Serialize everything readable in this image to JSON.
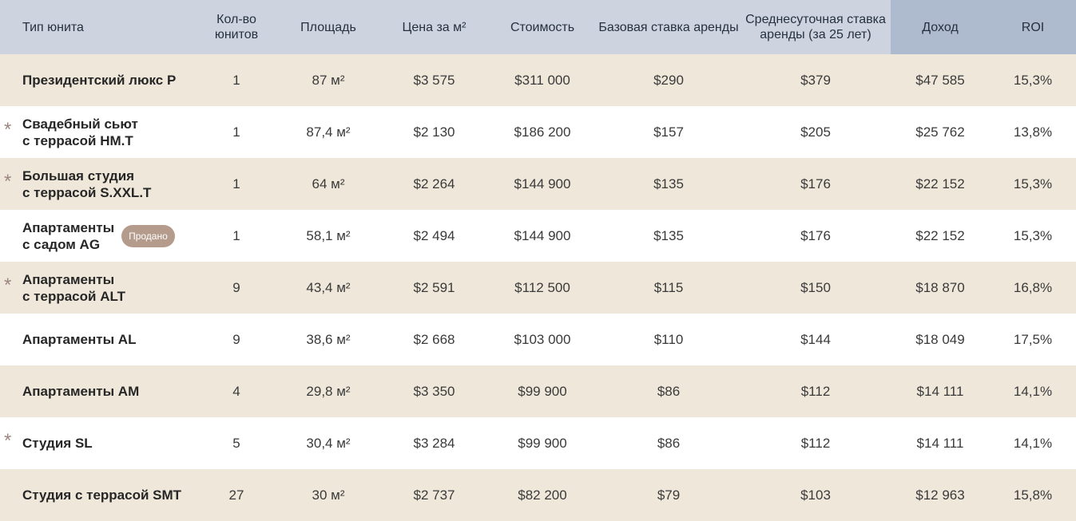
{
  "table": {
    "headers": {
      "type": "Тип юнита",
      "qty": "Кол-во юнитов",
      "area": "Площадь",
      "price": "Цена за м²",
      "cost": "Стоимость",
      "base": "Базовая ставка аренды",
      "avg": "Среднесуточная ставка аренды (за 25 лет)",
      "income": "Доход",
      "roi": "ROI"
    },
    "rows": [
      {
        "star": false,
        "name_line1": "Президентский люкс P",
        "name_line2": "",
        "sold": "",
        "qty": "1",
        "area": "87 м²",
        "price": "$3 575",
        "cost": "$311 000",
        "base": "$290",
        "avg": "$379",
        "income": "$47 585",
        "roi": "15,3%"
      },
      {
        "star": true,
        "name_line1": "Свадебный сьют",
        "name_line2": "с террасой HM.T",
        "sold": "",
        "qty": "1",
        "area": "87,4 м²",
        "price": "$2 130",
        "cost": "$186 200",
        "base": "$157",
        "avg": "$205",
        "income": "$25 762",
        "roi": "13,8%"
      },
      {
        "star": true,
        "name_line1": "Большая студия",
        "name_line2": "с террасой S.XXL.T",
        "sold": "",
        "qty": "1",
        "area": "64 м²",
        "price": "$2 264",
        "cost": "$144 900",
        "base": "$135",
        "avg": "$176",
        "income": "$22 152",
        "roi": "15,3%"
      },
      {
        "star": false,
        "name_line1": "Апартаменты",
        "name_line2": "с садом AG",
        "sold": "Продано",
        "qty": "1",
        "area": "58,1 м²",
        "price": "$2 494",
        "cost": "$144 900",
        "base": "$135",
        "avg": "$176",
        "income": "$22 152",
        "roi": "15,3%"
      },
      {
        "star": true,
        "name_line1": "Апартаменты",
        "name_line2": "с террасой ALT",
        "sold": "",
        "qty": "9",
        "area": "43,4 м²",
        "price": "$2 591",
        "cost": "$112 500",
        "base": "$115",
        "avg": "$150",
        "income": "$18 870",
        "roi": "16,8%"
      },
      {
        "star": false,
        "name_line1": "Апартаменты AL",
        "name_line2": "",
        "sold": "",
        "qty": "9",
        "area": "38,6 м²",
        "price": "$2 668",
        "cost": "$103 000",
        "base": "$110",
        "avg": "$144",
        "income": "$18 049",
        "roi": "17,5%"
      },
      {
        "star": false,
        "name_line1": "Апартаменты AM",
        "name_line2": "",
        "sold": "",
        "qty": "4",
        "area": "29,8 м²",
        "price": "$3 350",
        "cost": "$99 900",
        "base": "$86",
        "avg": "$112",
        "income": "$14 111",
        "roi": "14,1%"
      },
      {
        "star": true,
        "name_line1": "Студия SL",
        "name_line2": "",
        "sold": "",
        "qty": "5",
        "area": "30,4 м²",
        "price": "$3 284",
        "cost": "$99 900",
        "base": "$86",
        "avg": "$112",
        "income": "$14 111",
        "roi": "14,1%"
      },
      {
        "star": false,
        "name_line1": "Студия с террасой SMT",
        "name_line2": "",
        "sold": "",
        "qty": "27",
        "area": "30 м²",
        "price": "$2 737",
        "cost": "$82 200",
        "base": "$79",
        "avg": "$103",
        "income": "$12 963",
        "roi": "15,8%"
      }
    ],
    "colors": {
      "header_bg": "#cdd4e0",
      "header_highlight_bg": "#aebace",
      "row_beige": "#efe8da",
      "row_white": "#ffffff",
      "sold_badge": "#b49b8c",
      "star": "#9c8780"
    },
    "star_icon": "asterisk-star-icon"
  }
}
